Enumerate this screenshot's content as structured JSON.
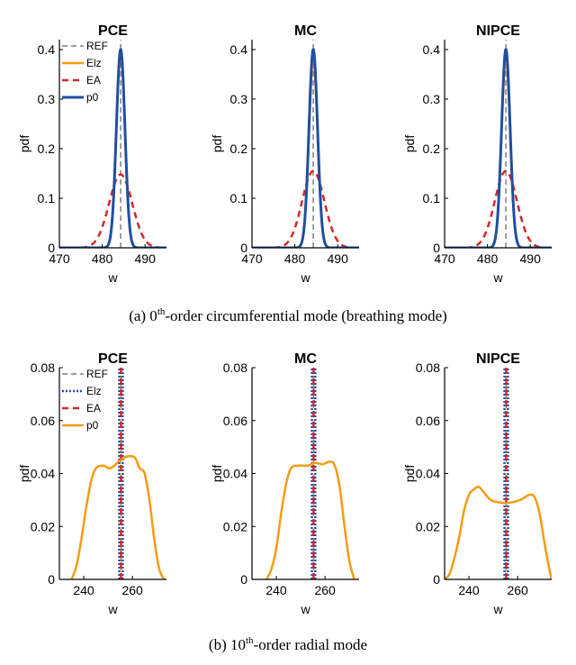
{
  "captions": {
    "a": {
      "pre": "(a) 0",
      "sup": "th",
      "post": "-order circumferential mode (breathing mode)"
    },
    "b": {
      "pre": "(b) 10",
      "sup": "th",
      "post": "-order radial mode"
    }
  },
  "colors": {
    "REF": "#7f7f7f",
    "Elz_a": "#f39c12",
    "EA": "#d62728",
    "p0_a": "#1f4fa0",
    "Elz_b": "#1f4fa0",
    "p0_b": "#f39c12"
  },
  "chart_data": [
    {
      "type": "line",
      "row": "a",
      "title": "PCE",
      "xlabel": "w",
      "ylabel": "pdf",
      "xlim": [
        470,
        495
      ],
      "ylim": [
        0,
        0.42
      ],
      "xticks": [
        470,
        480,
        490
      ],
      "yticks": [
        0,
        0.1,
        0.2,
        0.3,
        0.4
      ],
      "yticklabels": [
        "0",
        "0.1",
        "0.2",
        "0.3",
        "0.4"
      ],
      "legend": [
        "REF",
        "Elz",
        "EA",
        "p0"
      ],
      "series": [
        {
          "name": "REF",
          "style": "gray-dash",
          "kind": "vline",
          "x": 484.3
        },
        {
          "name": "Elz",
          "style": "orange-solid",
          "kind": "gauss",
          "mu": 484.3,
          "sigma": 1.0,
          "peak": 0.4
        },
        {
          "name": "EA",
          "style": "red-dash",
          "kind": "gauss",
          "mu": 484.3,
          "sigma": 2.7,
          "peak": 0.148
        },
        {
          "name": "p0",
          "style": "blue-solid",
          "kind": "gauss",
          "mu": 484.3,
          "sigma": 1.0,
          "peak": 0.4
        }
      ]
    },
    {
      "type": "line",
      "row": "a",
      "title": "MC",
      "xlabel": "w",
      "ylabel": "pdf",
      "xlim": [
        470,
        495
      ],
      "ylim": [
        0,
        0.42
      ],
      "xticks": [
        470,
        480,
        490
      ],
      "yticks": [
        0,
        0.1,
        0.2,
        0.3,
        0.4
      ],
      "yticklabels": [
        "0",
        "0.1",
        "0.2",
        "0.3",
        "0.4"
      ],
      "series": [
        {
          "style": "gray-dash",
          "kind": "vline",
          "x": 484.3
        },
        {
          "style": "orange-solid",
          "kind": "gauss",
          "mu": 484.3,
          "sigma": 1.0,
          "peak": 0.38
        },
        {
          "style": "red-dash",
          "kind": "gauss",
          "mu": 484.3,
          "sigma": 2.6,
          "peak": 0.155
        },
        {
          "style": "blue-solid",
          "kind": "gauss",
          "mu": 484.3,
          "sigma": 1.0,
          "peak": 0.4
        }
      ]
    },
    {
      "type": "line",
      "row": "a",
      "title": "NIPCE",
      "xlabel": "w",
      "ylabel": "pdf",
      "xlim": [
        470,
        495
      ],
      "ylim": [
        0,
        0.42
      ],
      "xticks": [
        470,
        480,
        490
      ],
      "yticks": [
        0,
        0.1,
        0.2,
        0.3,
        0.4
      ],
      "yticklabels": [
        "0",
        "0.1",
        "0.2",
        "0.3",
        "0.4"
      ],
      "series": [
        {
          "style": "gray-dash",
          "kind": "vline",
          "x": 484.3
        },
        {
          "style": "orange-solid",
          "kind": "gauss",
          "mu": 484.3,
          "sigma": 1.0,
          "peak": 0.38
        },
        {
          "style": "red-dash",
          "kind": "gauss",
          "mu": 484.3,
          "sigma": 2.6,
          "peak": 0.155
        },
        {
          "style": "blue-solid",
          "kind": "gauss",
          "mu": 484.3,
          "sigma": 1.0,
          "peak": 0.4
        }
      ]
    },
    {
      "type": "line",
      "row": "b",
      "title": "PCE",
      "xlabel": "w",
      "ylabel": "pdf",
      "xlim": [
        230,
        274
      ],
      "ylim": [
        0,
        0.08
      ],
      "xticks": [
        240,
        260
      ],
      "yticks": [
        0,
        0.02,
        0.04,
        0.06,
        0.08
      ],
      "yticklabels": [
        "0",
        "0.02",
        "0.04",
        "0.06",
        "0.08"
      ],
      "legend": [
        "REF",
        "Elz",
        "EA",
        "p0"
      ],
      "series": [
        {
          "name": "REF",
          "style": "gray-dash",
          "kind": "vline",
          "x": 255.3
        },
        {
          "name": "Elz",
          "style": "blue-dot",
          "kind": "vpair",
          "x1": 254.6,
          "x2": 256.0
        },
        {
          "name": "EA",
          "style": "red-dash",
          "kind": "vline",
          "x": 255.3
        },
        {
          "name": "p0",
          "style": "orange-solid",
          "kind": "points",
          "points": [
            [
              235,
              0
            ],
            [
              237,
              0.005
            ],
            [
              239,
              0.015
            ],
            [
              241,
              0.027
            ],
            [
              243,
              0.037
            ],
            [
              245,
              0.042
            ],
            [
              248,
              0.043
            ],
            [
              251,
              0.042
            ],
            [
              255,
              0.045
            ],
            [
              258,
              0.0465
            ],
            [
              261,
              0.046
            ],
            [
              263,
              0.042
            ],
            [
              265,
              0.04
            ],
            [
              267,
              0.03
            ],
            [
              269,
              0.015
            ],
            [
              271,
              0.004
            ],
            [
              273,
              0
            ]
          ]
        }
      ]
    },
    {
      "type": "line",
      "row": "b",
      "title": "MC",
      "xlabel": "w",
      "ylabel": "pdf",
      "xlim": [
        230,
        274
      ],
      "ylim": [
        0,
        0.08
      ],
      "xticks": [
        240,
        260
      ],
      "yticks": [
        0,
        0.02,
        0.04,
        0.06,
        0.08
      ],
      "yticklabels": [
        "0",
        "0.02",
        "0.04",
        "0.06",
        "0.08"
      ],
      "series": [
        {
          "style": "gray-dash",
          "kind": "vline",
          "x": 255.3
        },
        {
          "style": "blue-dot",
          "kind": "vpair",
          "x1": 254.6,
          "x2": 256.0
        },
        {
          "style": "red-dash",
          "kind": "vline",
          "x": 255.3
        },
        {
          "style": "orange-solid",
          "kind": "points",
          "points": [
            [
              236,
              0
            ],
            [
              238,
              0.004
            ],
            [
              240,
              0.012
            ],
            [
              242,
              0.025
            ],
            [
              244,
              0.036
            ],
            [
              246,
              0.042
            ],
            [
              249,
              0.043
            ],
            [
              253,
              0.043
            ],
            [
              256,
              0.044
            ],
            [
              259,
              0.0435
            ],
            [
              262,
              0.0445
            ],
            [
              264,
              0.043
            ],
            [
              266,
              0.035
            ],
            [
              268,
              0.02
            ],
            [
              270,
              0.007
            ],
            [
              272,
              0
            ]
          ]
        }
      ]
    },
    {
      "type": "line",
      "row": "b",
      "title": "NIPCE",
      "xlabel": "w",
      "ylabel": "pdf",
      "xlim": [
        230,
        274
      ],
      "ylim": [
        0,
        0.08
      ],
      "xticks": [
        240,
        260
      ],
      "yticks": [
        0,
        0.02,
        0.04,
        0.06,
        0.08
      ],
      "yticklabels": [
        "0",
        "0.02",
        "0.04",
        "0.06",
        "0.08"
      ],
      "series": [
        {
          "style": "gray-dash",
          "kind": "vline",
          "x": 255.3
        },
        {
          "style": "blue-dot",
          "kind": "vpair",
          "x1": 254.6,
          "x2": 256.0
        },
        {
          "style": "red-dash",
          "kind": "vline",
          "x": 255.3
        },
        {
          "style": "orange-solid",
          "kind": "points",
          "points": [
            [
              230,
              0
            ],
            [
              232,
              0.002
            ],
            [
              234,
              0.008
            ],
            [
              236,
              0.016
            ],
            [
              238,
              0.026
            ],
            [
              240,
              0.032
            ],
            [
              242,
              0.034
            ],
            [
              244,
              0.035
            ],
            [
              246,
              0.033
            ],
            [
              249,
              0.03
            ],
            [
              253,
              0.029
            ],
            [
              257,
              0.029
            ],
            [
              261,
              0.03
            ],
            [
              265,
              0.032
            ],
            [
              267,
              0.031
            ],
            [
              269,
              0.025
            ],
            [
              271,
              0.014
            ],
            [
              273,
              0.004
            ],
            [
              274,
              0
            ]
          ]
        }
      ]
    }
  ]
}
